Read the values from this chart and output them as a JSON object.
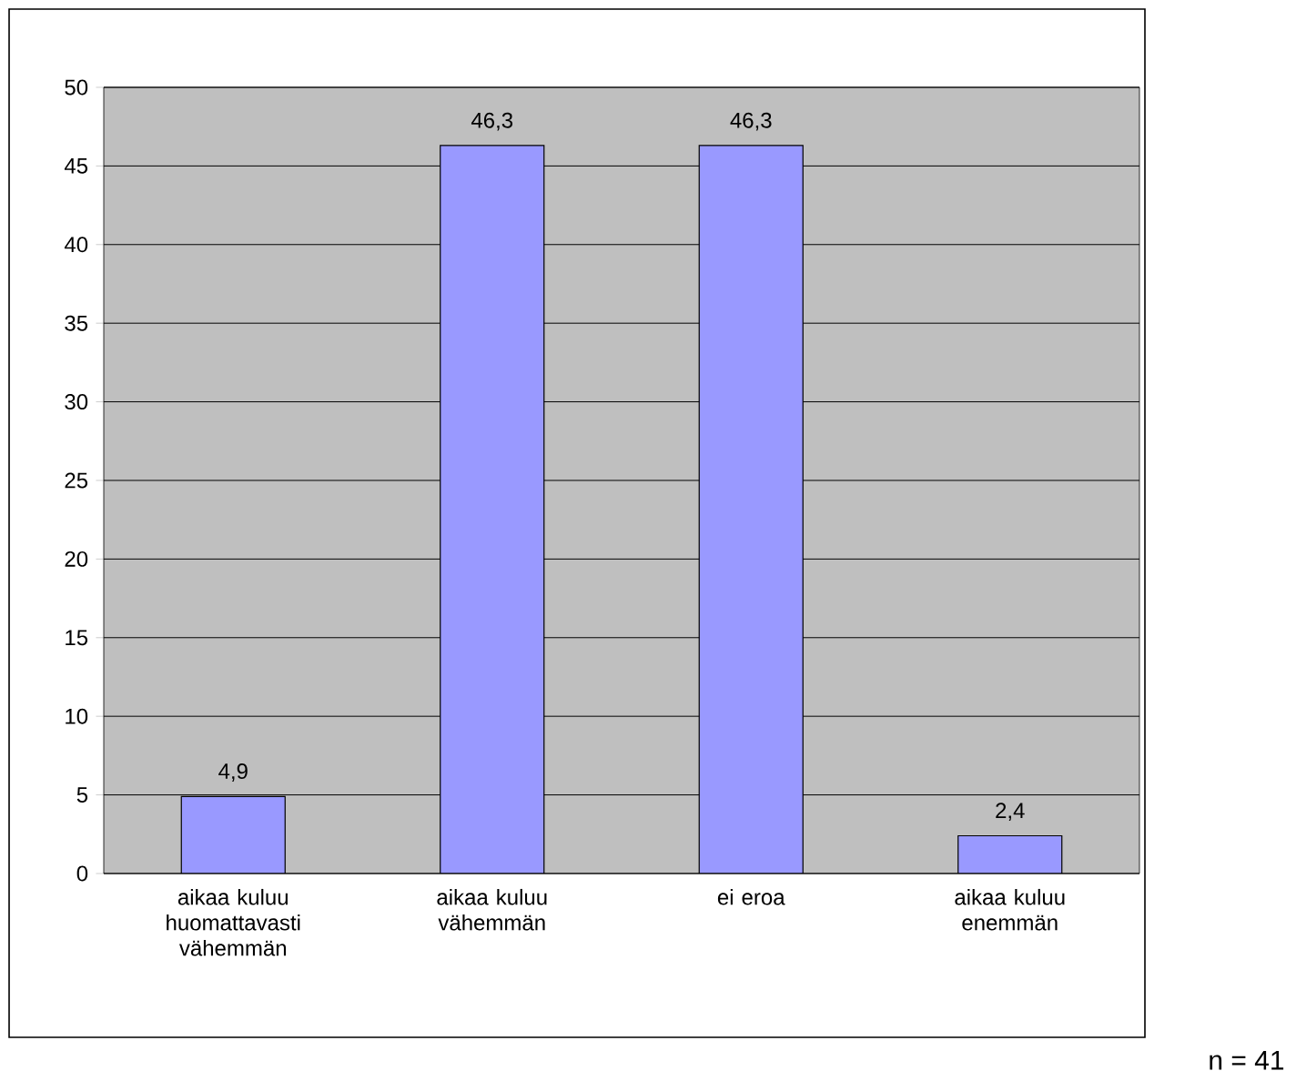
{
  "chart_data": {
    "type": "bar",
    "categories": [
      "aikaa kuluu huomattavasti vähemmän",
      "aikaa kuluu vähemmän",
      "ei eroa",
      "aikaa kuluu enemmän"
    ],
    "values": [
      4.9,
      46.3,
      46.3,
      2.4
    ],
    "value_labels": [
      "4,9",
      "46,3",
      "46,3",
      "2,4"
    ],
    "color": "#9999ff",
    "ylim": [
      0,
      50
    ],
    "yticks": [
      0,
      5,
      10,
      15,
      20,
      25,
      30,
      35,
      40,
      45,
      50
    ],
    "grid": "y",
    "annotations": [
      "n = 41"
    ]
  }
}
